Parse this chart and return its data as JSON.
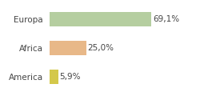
{
  "categories": [
    "Europa",
    "Africa",
    "America"
  ],
  "values": [
    69.1,
    25.0,
    5.9
  ],
  "bar_colors": [
    "#b5ceA0",
    "#e8b888",
    "#d4c84a"
  ],
  "labels": [
    "69,1%",
    "25,0%",
    "5,9%"
  ],
  "xlim": [
    0,
    100
  ],
  "background_color": "#ffffff",
  "bar_height": 0.5,
  "label_fontsize": 7.5,
  "category_fontsize": 7.5
}
